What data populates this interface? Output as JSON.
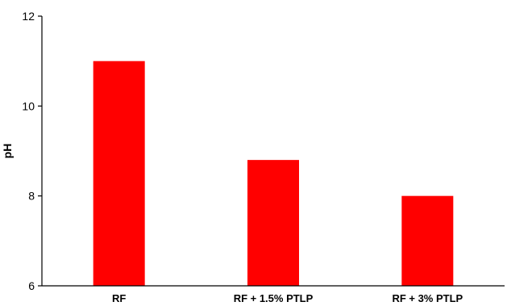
{
  "chart_data": {
    "type": "bar",
    "title": "",
    "xlabel": "",
    "ylabel": "pH",
    "categories": [
      "RF",
      "RF + 1.5% PTLP",
      "RF + 3% PTLP"
    ],
    "values": [
      11.0,
      8.8,
      8.0
    ],
    "ylim": [
      6,
      12
    ],
    "yticks": [
      6,
      8,
      10,
      12
    ],
    "grid": false,
    "legend": "none",
    "bar_color": "#ff0000"
  }
}
